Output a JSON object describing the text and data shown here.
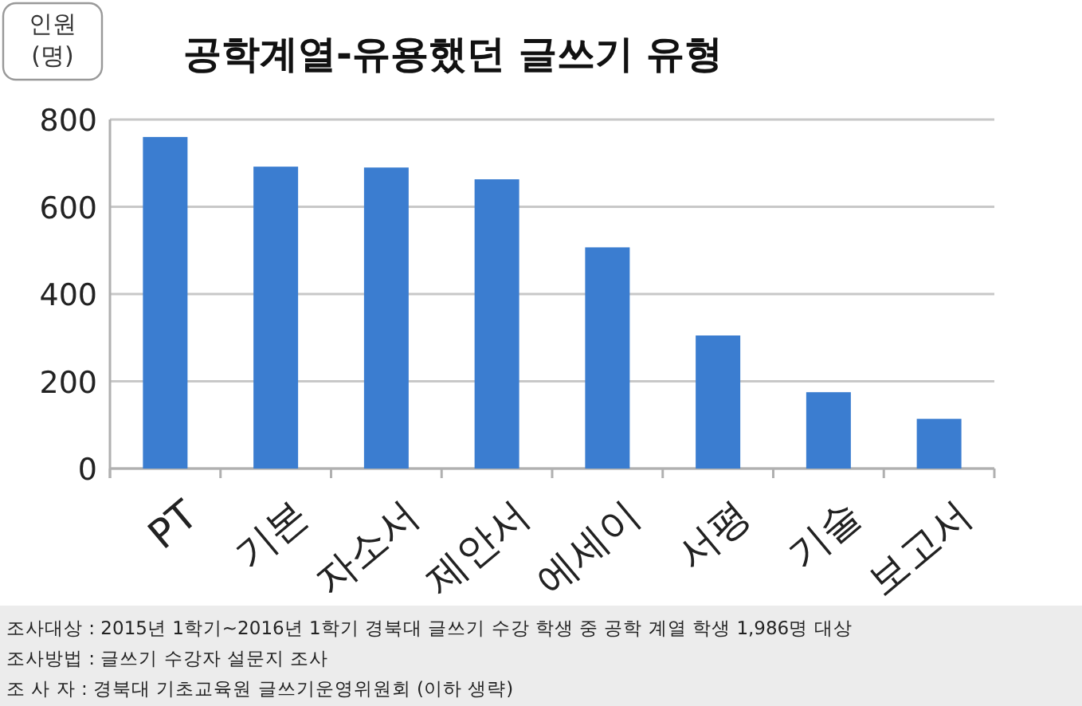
{
  "chart_data": {
    "type": "bar",
    "title": "공학계열-유용했던 글쓰기 유형",
    "ylabel": "인원 (명)",
    "categories": [
      "PT",
      "기본",
      "자소서",
      "제안서",
      "에세이",
      "서평",
      "기술",
      "보고서"
    ],
    "values": [
      760,
      692,
      690,
      663,
      507,
      305,
      175,
      114
    ],
    "color": "#3b7dd0",
    "ylim": [
      0,
      800
    ],
    "yticks": [
      0,
      200,
      400,
      600,
      800
    ],
    "grid": "y",
    "annotations": [
      "조사대상 : 2015년 1학기~2016년 1학기 경북대 글쓰기 수강 학생 중 공학 계열 학생 1,986명 대상",
      "조사방법 : 글쓰기 수강자 설문지 조사",
      "조 사 자 : 경북대 기초교육원 글쓰기운영위원회 (이하 생략)"
    ]
  }
}
